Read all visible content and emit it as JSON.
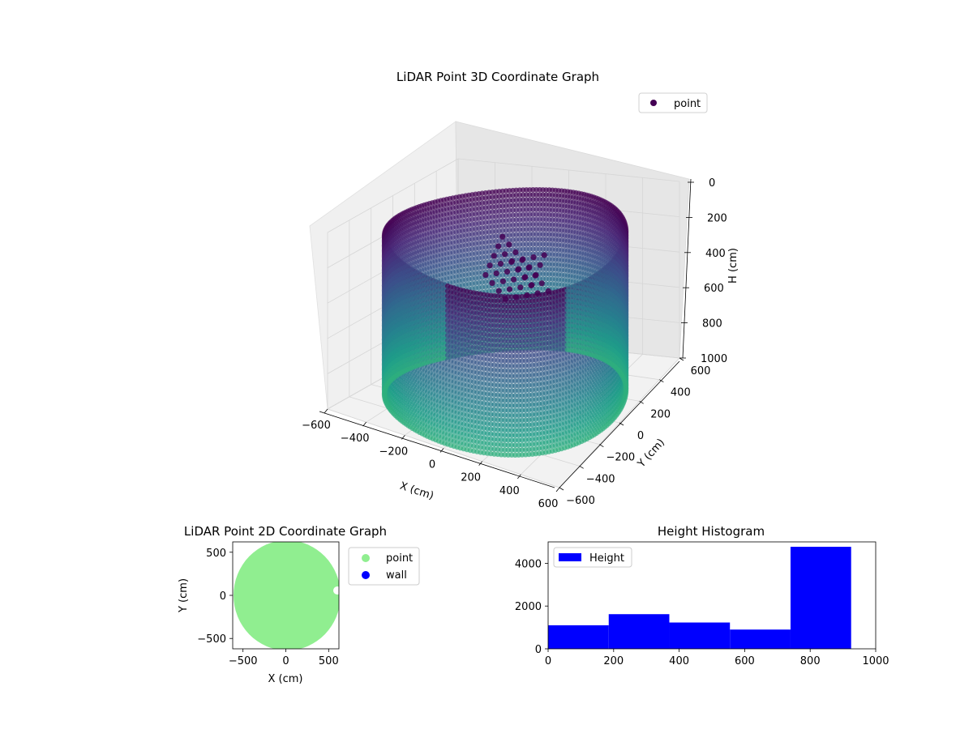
{
  "chart_data": [
    {
      "type": "scatter3d",
      "title": "LiDAR Point 3D Coordinate Graph",
      "xlabel": "X (cm)",
      "ylabel": "Y (cm)",
      "zlabel": "H (cm)",
      "xlim": [
        -600,
        600
      ],
      "ylim": [
        -600,
        600
      ],
      "zlim": [
        1000,
        0
      ],
      "xticks": [
        "−600",
        "−400",
        "−200",
        "0",
        "200",
        "400",
        "600"
      ],
      "yticks": [
        "−600",
        "−400",
        "−200",
        "0",
        "200",
        "400",
        "600"
      ],
      "zticks": [
        "0",
        "200",
        "400",
        "600",
        "800",
        "1000"
      ],
      "legend": [
        {
          "label": "point",
          "color": "#440154"
        }
      ],
      "legend_position": "upper-right",
      "grid": true,
      "colormap": "viridis",
      "shape": "cylinder",
      "cylinder": {
        "radius_cm": 560,
        "height_min_cm": 100,
        "height_max_cm": 1000,
        "center": [
          0,
          0
        ]
      }
    },
    {
      "type": "scatter",
      "title": "LiDAR Point 2D Coordinate Graph",
      "xlabel": "X (cm)",
      "ylabel": "Y (cm)",
      "xlim": [
        -620,
        620
      ],
      "ylim": [
        -620,
        620
      ],
      "xticks": [
        "−500",
        "0",
        "500"
      ],
      "yticks": [
        "−500",
        "0",
        "500"
      ],
      "series": [
        {
          "name": "point",
          "color": "#90ee90",
          "region": "disc",
          "center": [
            0,
            0
          ],
          "radius": 600
        },
        {
          "name": "wall",
          "color": "#0000ff"
        }
      ],
      "legend_position": "outside-right"
    },
    {
      "type": "histogram",
      "title": "Height Histogram",
      "xlim": [
        0,
        1000
      ],
      "ylim": [
        0,
        5000
      ],
      "xticks": [
        "0",
        "200",
        "400",
        "600",
        "800",
        "1000"
      ],
      "yticks": [
        "0",
        "2000",
        "4000"
      ],
      "bin_edges": [
        0,
        185,
        370,
        555,
        740,
        925
      ],
      "counts": [
        1100,
        1620,
        1230,
        900,
        4770
      ],
      "series": [
        {
          "name": "Height",
          "color": "#0000ff"
        }
      ],
      "legend_position": "upper-left"
    }
  ]
}
